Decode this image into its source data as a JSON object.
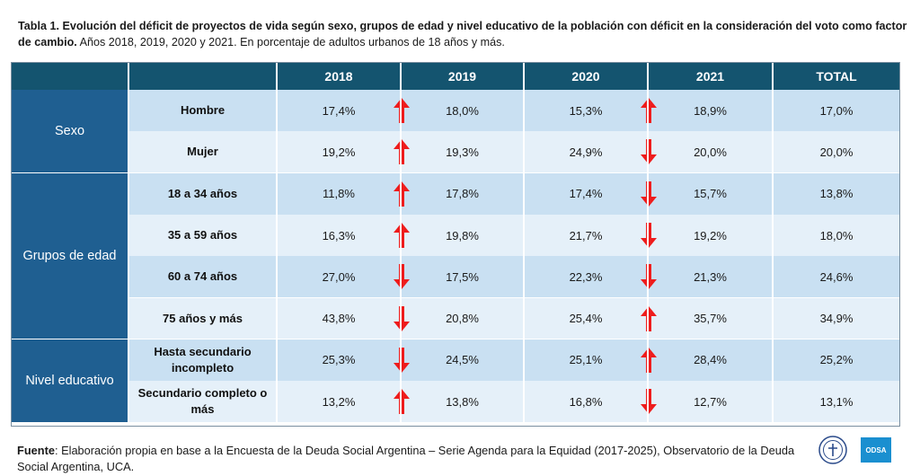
{
  "caption": {
    "bold": "Tabla 1. Evolución del déficit de proyectos de vida según sexo, grupos de edad y nivel educativo de la población con déficit en la consideración del voto como factor de cambio.",
    "normal": " Años 2018, 2019, 2020 y 2021. En porcentaje de adultos urbanos de 18 años y más."
  },
  "table": {
    "headers": [
      "2018",
      "2019",
      "2020",
      "2021",
      "TOTAL"
    ],
    "groups": [
      {
        "label": "Sexo",
        "rows": [
          {
            "label": "Hombre",
            "values": [
              "17,4%",
              "18,0%",
              "15,3%",
              "18,9%",
              "17,0%"
            ],
            "arrows": [
              "up",
              "up"
            ]
          },
          {
            "label": "Mujer",
            "values": [
              "19,2%",
              "19,3%",
              "24,9%",
              "20,0%",
              "20,0%"
            ],
            "arrows": [
              "up",
              "down"
            ]
          }
        ]
      },
      {
        "label": "Grupos de edad",
        "rows": [
          {
            "label": "18 a 34 años",
            "values": [
              "11,8%",
              "17,8%",
              "17,4%",
              "15,7%",
              "13,8%"
            ],
            "arrows": [
              "up",
              "down"
            ]
          },
          {
            "label": "35 a 59 años",
            "values": [
              "16,3%",
              "19,8%",
              "21,7%",
              "19,2%",
              "18,0%"
            ],
            "arrows": [
              "up",
              "down"
            ]
          },
          {
            "label": "60 a 74 años",
            "values": [
              "27,0%",
              "17,5%",
              "22,3%",
              "21,3%",
              "24,6%"
            ],
            "arrows": [
              "down",
              "down"
            ]
          },
          {
            "label": "75 años y más",
            "values": [
              "43,8%",
              "20,8%",
              "25,4%",
              "35,7%",
              "34,9%"
            ],
            "arrows": [
              "down",
              "up"
            ]
          }
        ]
      },
      {
        "label": "Nivel educativo",
        "rows": [
          {
            "label": "Hasta secundario incompleto",
            "values": [
              "25,3%",
              "24,5%",
              "25,1%",
              "28,4%",
              "25,2%"
            ],
            "arrows": [
              "down",
              "up"
            ]
          },
          {
            "label": "Secundario completo o más",
            "values": [
              "13,2%",
              "13,8%",
              "16,8%",
              "12,7%",
              "13,1%"
            ],
            "arrows": [
              "up",
              "down"
            ]
          }
        ]
      }
    ]
  },
  "footer": {
    "bold": "Fuente",
    "normal": ": Elaboración propia en base a la Encuesta de la Deuda Social Argentina – Serie Agenda para la Equidad (2017-2025), Observatorio de la Deuda Social Argentina, UCA."
  },
  "logos": {
    "odsa_label": "ODSA"
  },
  "colors": {
    "header": "#14546f",
    "group": "#1f5f91",
    "row_even": "#c9e0f2",
    "row_odd": "#e5f0f9",
    "arrow": "#ee1c1c"
  }
}
